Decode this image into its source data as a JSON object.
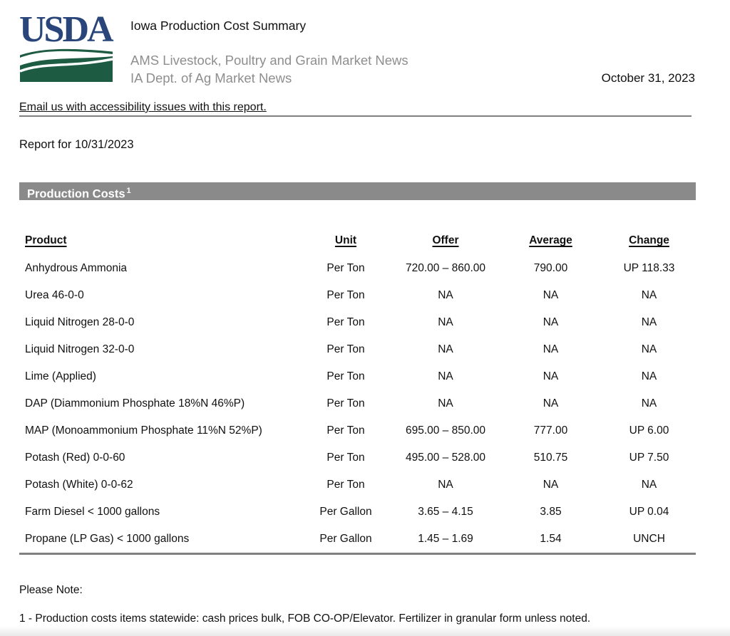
{
  "header": {
    "logo_text": "USDA",
    "title": "Iowa Production Cost Summary",
    "subtitle_line1": "AMS Livestock, Poultry and Grain Market News",
    "subtitle_line2": "IA Dept. of Ag Market News",
    "date": "October 31, 2023"
  },
  "accessibility_link": "Email us with accessibility issues with this report.",
  "report_for": "Report for 10/31/2023",
  "section": {
    "title": "Production Costs",
    "footnote_ref": "1"
  },
  "table": {
    "columns": [
      "Product",
      "Unit",
      "Offer",
      "Average",
      "Change"
    ],
    "rows": [
      [
        "Anhydrous Ammonia",
        "Per Ton",
        "720.00 – 860.00",
        "790.00",
        "UP 118.33"
      ],
      [
        "Urea 46-0-0",
        "Per Ton",
        "NA",
        "NA",
        "NA"
      ],
      [
        "Liquid Nitrogen 28-0-0",
        "Per Ton",
        "NA",
        "NA",
        "NA"
      ],
      [
        "Liquid Nitrogen 32-0-0",
        "Per Ton",
        "NA",
        "NA",
        "NA"
      ],
      [
        "Lime (Applied)",
        "Per Ton",
        "NA",
        "NA",
        "NA"
      ],
      [
        "DAP (Diammonium Phosphate 18%N 46%P)",
        "Per Ton",
        "NA",
        "NA",
        "NA"
      ],
      [
        "MAP (Monoammonium Phosphate 11%N 52%P)",
        "Per Ton",
        "695.00 – 850.00",
        "777.00",
        "UP 6.00"
      ],
      [
        "Potash (Red) 0-0-60",
        "Per Ton",
        "495.00 – 528.00",
        "510.75",
        "UP 7.50"
      ],
      [
        "Potash (White) 0-0-62",
        "Per Ton",
        "NA",
        "NA",
        "NA"
      ],
      [
        "Farm Diesel < 1000 gallons",
        "Per Gallon",
        "3.65 – 4.15",
        "3.85",
        "UP 0.04"
      ],
      [
        "Propane (LP Gas) < 1000 gallons",
        "Per Gallon",
        "1.45 – 1.69",
        "1.54",
        "UNCH"
      ]
    ]
  },
  "notes": {
    "please_note": "Please Note:",
    "footnote_1": "1 - Production costs items statewide: cash prices bulk, FOB CO-OP/Elevator. Fertilizer in granular form unless noted."
  },
  "colors": {
    "usda_blue": "#29457a",
    "usda_green": "#1e5b43",
    "section_bar_gray": "#8a8a8a",
    "subtitle_gray": "#8e8e8e",
    "rule_gray": "#808080"
  }
}
